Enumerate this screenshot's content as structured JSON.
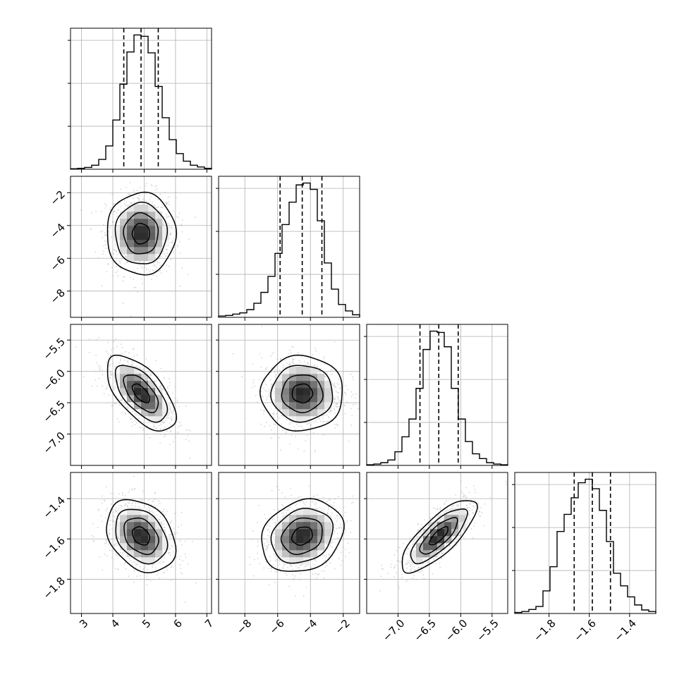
{
  "chart_data": {
    "type": "corner",
    "parameters": [
      {
        "range": [
          2.65,
          7.15
        ],
        "ticks": [
          3,
          4,
          5,
          6,
          7
        ],
        "tick_labels": [
          "3",
          "4",
          "5",
          "6",
          "7"
        ],
        "quantiles": [
          4.35,
          4.9,
          5.45
        ],
        "hist_counts": [
          1,
          2,
          4,
          9,
          22,
          52,
          110,
          190,
          262,
          300,
          297,
          260,
          185,
          115,
          66,
          35,
          18,
          9,
          5,
          2
        ]
      },
      {
        "range": [
          -9.6,
          -1.0
        ],
        "ticks": [
          -8,
          -6,
          -4,
          -2
        ],
        "tick_labels": [
          "−8",
          "−6",
          "−4",
          "−2"
        ],
        "quantiles": [
          -5.85,
          -4.5,
          -3.3
        ],
        "hist_counts": [
          2,
          3,
          5,
          7,
          12,
          22,
          39,
          64,
          100,
          145,
          180,
          207,
          210,
          200,
          151,
          85,
          44,
          20,
          10,
          4
        ]
      },
      {
        "range": [
          -7.5,
          -5.25
        ],
        "ticks": [
          -7.0,
          -6.5,
          -6.0,
          -5.5
        ],
        "tick_labels": [
          "−7.0",
          "−6.5",
          "−6.0",
          "−5.5"
        ],
        "quantiles": [
          -6.65,
          -6.35,
          -6.04
        ],
        "hist_counts": [
          1,
          2,
          4,
          8,
          20,
          42,
          68,
          113,
          170,
          197,
          195,
          174,
          113,
          68,
          35,
          17,
          10,
          4,
          2,
          1
        ]
      },
      {
        "range": [
          -1.97,
          -1.27
        ],
        "ticks": [
          -1.8,
          -1.6,
          -1.4
        ],
        "tick_labels": [
          "−1.8",
          "−1.6",
          "−1.4"
        ],
        "quantiles": [
          -1.675,
          -1.585,
          -1.495
        ],
        "hist_counts": [
          2,
          4,
          8,
          14,
          45,
          93,
          163,
          197,
          230,
          260,
          267,
          248,
          205,
          143,
          80,
          55,
          33,
          17,
          7,
          4
        ]
      }
    ],
    "y_tick_parameters": [
      {
        "ticks": [
          -2,
          -4,
          -6,
          -8
        ],
        "tick_labels": [
          "−2",
          "−4",
          "−6",
          "−8"
        ]
      },
      {
        "ticks": [
          -5.5,
          -6.0,
          -6.5,
          -7.0
        ],
        "tick_labels": [
          "−5.5",
          "−6.0",
          "−6.5",
          "−7.0"
        ]
      },
      {
        "ticks": [
          -1.4,
          -1.6,
          -1.8
        ],
        "tick_labels": [
          "−1.4",
          "−1.6",
          "−1.8"
        ]
      }
    ],
    "pairs": [
      {
        "row": 1,
        "col": 0,
        "mean": [
          4.9,
          -4.5
        ],
        "sd": [
          0.55,
          1.25
        ],
        "corr": 0.0
      },
      {
        "row": 2,
        "col": 0,
        "mean": [
          4.9,
          -6.35
        ],
        "sd": [
          0.55,
          0.3
        ],
        "corr": -0.62
      },
      {
        "row": 2,
        "col": 1,
        "mean": [
          -4.5,
          -6.35
        ],
        "sd": [
          1.25,
          0.3
        ],
        "corr": 0.0
      },
      {
        "row": 3,
        "col": 0,
        "mean": [
          4.9,
          -1.585
        ],
        "sd": [
          0.55,
          0.09
        ],
        "corr": -0.3
      },
      {
        "row": 3,
        "col": 1,
        "mean": [
          -4.5,
          -1.585
        ],
        "sd": [
          1.25,
          0.09
        ],
        "corr": 0.2
      },
      {
        "row": 3,
        "col": 2,
        "mean": [
          -6.35,
          -1.585
        ],
        "sd": [
          0.3,
          0.09
        ],
        "corr": 0.78
      }
    ],
    "contour_levels_sigma": [
      0.5,
      1.0,
      1.5,
      2.0
    ],
    "grid": true,
    "histogram_style": "step",
    "quantile_line_style": "dashed",
    "colors": {
      "line": "#000000",
      "grid": "#b0b0b0",
      "points": "#bbbbbb"
    }
  }
}
